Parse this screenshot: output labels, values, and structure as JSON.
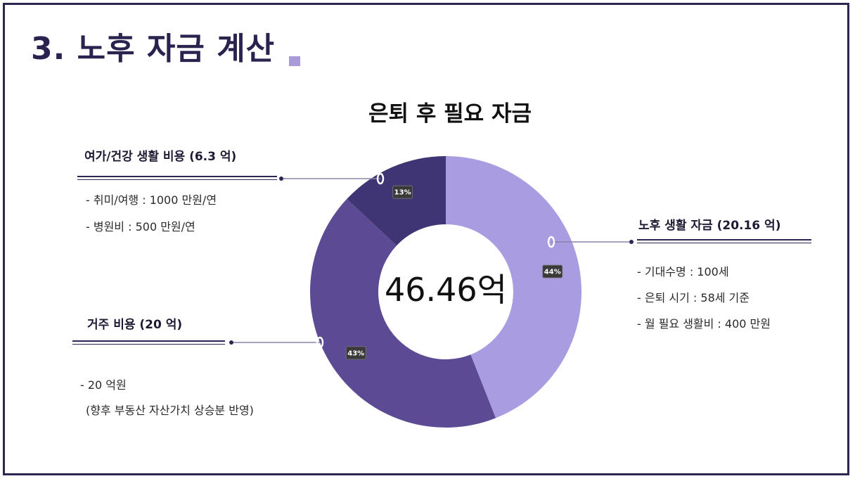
{
  "page": {
    "title": "3. 노후 자금 계산",
    "accent": "#2d2553"
  },
  "chart_data": {
    "type": "pie",
    "title": "은퇴 후 필요 자금",
    "center_label": "46.46억",
    "slices": [
      {
        "label": "노후 생활 자금 (20.16 억)",
        "value": 44,
        "display": "44%",
        "color": "#a99ce0"
      },
      {
        "label": "거주 비용 (20 억)",
        "value": 43,
        "display": "43%",
        "color": "#5d4a94"
      },
      {
        "label": "여가/건강 생활 비용 (6.3 억)",
        "value": 13,
        "display": "13%",
        "color": "#3f3474"
      }
    ]
  },
  "sections": {
    "leisure": {
      "heading": "여가/건강 생활 비용 (6.3 억)",
      "items": [
        "- 취미/여행 : 1000 만원/연",
        "- 병원비 : 500 만원/연"
      ]
    },
    "housing": {
      "heading": "거주 비용 (20 억)",
      "items": [
        "- 20 억원",
        "(향후 부동산 자산가치 상승분 반영)"
      ]
    },
    "living": {
      "heading": "노후 생활 자금 (20.16 억)",
      "items": [
        "- 기대수명 : 100세",
        "- 은퇴 시기 : 58세 기준",
        "- 월 필요 생활비 : 400 만원"
      ]
    }
  }
}
